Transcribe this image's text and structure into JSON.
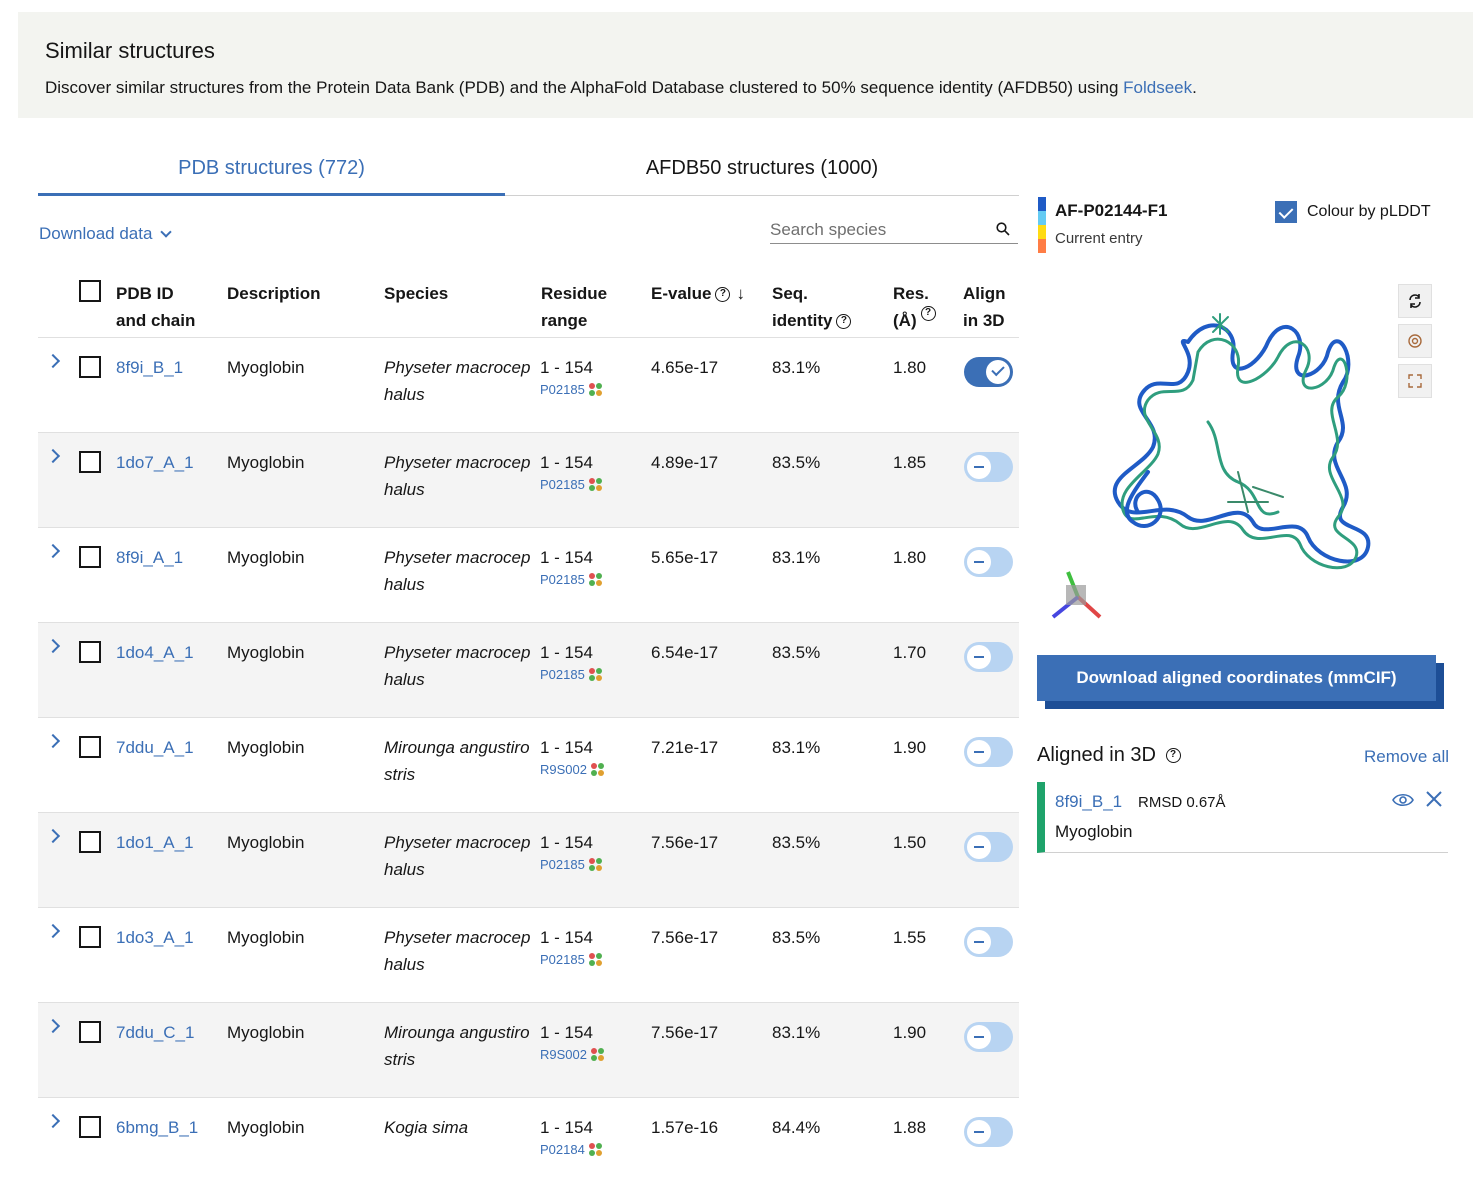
{
  "banner": {
    "title": "Similar structures",
    "description": "Discover similar structures from the Protein Data Bank (PDB) and the AlphaFold Database clustered to 50% sequence identity (AFDB50) using ",
    "link": "Foldseek",
    "suffix": "."
  },
  "tabs": [
    {
      "label": "PDB structures (772)",
      "active": true
    },
    {
      "label": "AFDB50 structures (1000)",
      "active": false
    }
  ],
  "toolbar": {
    "download_label": "Download data",
    "search_placeholder": "Search species",
    "search_value": ""
  },
  "columns": {
    "pdb_id_1": "PDB ID",
    "pdb_id_2": "and chain",
    "description": "Description",
    "species": "Species",
    "range_1": "Residue",
    "range_2": "range",
    "evalue": "E-value",
    "seqid_1": "Seq.",
    "seqid_2": "identity",
    "res_1": "Res.",
    "res_2": "(Å)",
    "align_1": "Align",
    "align_2": "in 3D"
  },
  "rows": [
    {
      "id": "8f9i_B_1",
      "description": "Myoglobin",
      "species": "Physeter macrocephalus",
      "range": "1 - 154",
      "uniprot": "P02185",
      "evalue": "4.65e-17",
      "seqid": "83.1%",
      "res": "1.80",
      "aligned": true
    },
    {
      "id": "1do7_A_1",
      "description": "Myoglobin",
      "species": "Physeter macrocephalus",
      "range": "1 - 154",
      "uniprot": "P02185",
      "evalue": "4.89e-17",
      "seqid": "83.5%",
      "res": "1.85",
      "aligned": false
    },
    {
      "id": "8f9i_A_1",
      "description": "Myoglobin",
      "species": "Physeter macrocephalus",
      "range": "1 - 154",
      "uniprot": "P02185",
      "evalue": "5.65e-17",
      "seqid": "83.1%",
      "res": "1.80",
      "aligned": false
    },
    {
      "id": "1do4_A_1",
      "description": "Myoglobin",
      "species": "Physeter macrocephalus",
      "range": "1 - 154",
      "uniprot": "P02185",
      "evalue": "6.54e-17",
      "seqid": "83.5%",
      "res": "1.70",
      "aligned": false
    },
    {
      "id": "7ddu_A_1",
      "description": "Myoglobin",
      "species": "Mirounga angustirostris",
      "range": "1 - 154",
      "uniprot": "R9S002",
      "evalue": "7.21e-17",
      "seqid": "83.1%",
      "res": "1.90",
      "aligned": false
    },
    {
      "id": "1do1_A_1",
      "description": "Myoglobin",
      "species": "Physeter macrocephalus",
      "range": "1 - 154",
      "uniprot": "P02185",
      "evalue": "7.56e-17",
      "seqid": "83.5%",
      "res": "1.50",
      "aligned": false
    },
    {
      "id": "1do3_A_1",
      "description": "Myoglobin",
      "species": "Physeter macrocephalus",
      "range": "1 - 154",
      "uniprot": "P02185",
      "evalue": "7.56e-17",
      "seqid": "83.5%",
      "res": "1.55",
      "aligned": false
    },
    {
      "id": "7ddu_C_1",
      "description": "Myoglobin",
      "species": "Mirounga angustirostris",
      "range": "1 - 154",
      "uniprot": "R9S002",
      "evalue": "7.56e-17",
      "seqid": "83.1%",
      "res": "1.90",
      "aligned": false
    },
    {
      "id": "6bmg_B_1",
      "description": "Myoglobin",
      "species": "Kogia sima",
      "range": "1 - 154",
      "uniprot": "P02184",
      "evalue": "1.57e-16",
      "seqid": "84.4%",
      "res": "1.88",
      "aligned": false
    }
  ],
  "current_entry": {
    "id": "AF-P02144-F1",
    "label": "Current entry",
    "plddt_label": "Colour by pLDDT",
    "plddt_checked": true,
    "legend_colors": [
      "#1f5bc6",
      "#65cbf3",
      "#ffdb13",
      "#ff7d45"
    ]
  },
  "viewer": {
    "buttons": [
      "reset-icon",
      "spin-icon",
      "fullscreen-icon"
    ],
    "download_label": "Download aligned coordinates (mmCIF)"
  },
  "aligned": {
    "title": "Aligned in 3D",
    "remove_all": "Remove all",
    "items": [
      {
        "id": "8f9i_B_1",
        "rmsd": "RMSD 0.67Å",
        "description": "Myoglobin",
        "color": "#1fa36b"
      }
    ]
  },
  "colors": {
    "accent": "#3b6fb6",
    "accent_dark": "#1d4e96",
    "aligned": "#1fa36b",
    "alt_row": "#f4f4f4",
    "banner_bg": "#f3f4f0"
  }
}
